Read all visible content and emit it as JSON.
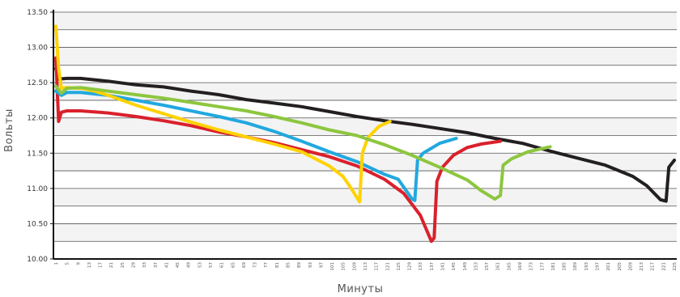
{
  "chart_data": {
    "type": "line",
    "title": "",
    "xlabel": "Минуты",
    "ylabel": "Вольты",
    "xlim": [
      1,
      225
    ],
    "ylim": [
      10.0,
      13.5
    ],
    "y_ticks": [
      "10.00",
      "10.50",
      "11.00",
      "11.50",
      "12.00",
      "12.50",
      "13.00",
      "13.50"
    ],
    "x_ticks": [
      "1",
      "5",
      "9",
      "13",
      "17",
      "21",
      "25",
      "29",
      "33",
      "37",
      "41",
      "45",
      "49",
      "53",
      "57",
      "61",
      "65",
      "69",
      "73",
      "77",
      "81",
      "85",
      "89",
      "93",
      "97",
      "101",
      "105",
      "109",
      "113",
      "117",
      "121",
      "125",
      "129",
      "133",
      "137",
      "141",
      "145",
      "149",
      "153",
      "157",
      "161",
      "165",
      "169",
      "173",
      "177",
      "181",
      "185",
      "189",
      "193",
      "197",
      "201",
      "205",
      "209",
      "213",
      "217",
      "221",
      "225"
    ],
    "grid": true,
    "legend": "none",
    "series": [
      {
        "color": "#231f20",
        "points": [
          [
            1,
            12.7
          ],
          [
            2,
            12.55
          ],
          [
            5,
            12.56
          ],
          [
            10,
            12.56
          ],
          [
            20,
            12.52
          ],
          [
            30,
            12.47
          ],
          [
            40,
            12.44
          ],
          [
            50,
            12.38
          ],
          [
            60,
            12.33
          ],
          [
            70,
            12.26
          ],
          [
            80,
            12.21
          ],
          [
            90,
            12.16
          ],
          [
            100,
            12.09
          ],
          [
            110,
            12.02
          ],
          [
            120,
            11.96
          ],
          [
            130,
            11.91
          ],
          [
            140,
            11.85
          ],
          [
            150,
            11.79
          ],
          [
            160,
            11.71
          ],
          [
            170,
            11.64
          ],
          [
            180,
            11.53
          ],
          [
            190,
            11.43
          ],
          [
            200,
            11.33
          ],
          [
            210,
            11.17
          ],
          [
            215,
            11.04
          ],
          [
            220,
            10.84
          ],
          [
            222,
            10.82
          ],
          [
            223,
            11.3
          ],
          [
            225,
            11.4
          ]
        ]
      },
      {
        "color": "#d9212c",
        "points": [
          [
            1,
            12.85
          ],
          [
            2,
            11.95
          ],
          [
            3,
            12.08
          ],
          [
            5,
            12.1
          ],
          [
            10,
            12.1
          ],
          [
            20,
            12.07
          ],
          [
            30,
            12.02
          ],
          [
            40,
            11.96
          ],
          [
            50,
            11.89
          ],
          [
            60,
            11.8
          ],
          [
            70,
            11.73
          ],
          [
            80,
            11.65
          ],
          [
            90,
            11.55
          ],
          [
            100,
            11.45
          ],
          [
            110,
            11.32
          ],
          [
            120,
            11.13
          ],
          [
            127,
            10.93
          ],
          [
            133,
            10.62
          ],
          [
            137,
            10.25
          ],
          [
            138,
            10.3
          ],
          [
            139,
            11.1
          ],
          [
            141,
            11.3
          ],
          [
            145,
            11.47
          ],
          [
            150,
            11.58
          ],
          [
            155,
            11.63
          ],
          [
            162,
            11.67
          ]
        ]
      },
      {
        "color": "#22a8df",
        "points": [
          [
            1,
            12.38
          ],
          [
            3,
            12.32
          ],
          [
            5,
            12.36
          ],
          [
            10,
            12.36
          ],
          [
            20,
            12.32
          ],
          [
            30,
            12.25
          ],
          [
            40,
            12.18
          ],
          [
            50,
            12.1
          ],
          [
            60,
            12.02
          ],
          [
            70,
            11.93
          ],
          [
            80,
            11.81
          ],
          [
            90,
            11.67
          ],
          [
            100,
            11.52
          ],
          [
            110,
            11.38
          ],
          [
            120,
            11.2
          ],
          [
            125,
            11.13
          ],
          [
            130,
            10.85
          ],
          [
            131,
            10.83
          ],
          [
            132,
            11.4
          ],
          [
            134,
            11.5
          ],
          [
            140,
            11.64
          ],
          [
            146,
            11.71
          ]
        ]
      },
      {
        "color": "#ffd200",
        "points": [
          [
            1,
            13.3
          ],
          [
            2,
            12.7
          ],
          [
            3,
            12.42
          ],
          [
            5,
            12.43
          ],
          [
            10,
            12.42
          ],
          [
            15,
            12.38
          ],
          [
            20,
            12.32
          ],
          [
            30,
            12.18
          ],
          [
            40,
            12.06
          ],
          [
            50,
            11.94
          ],
          [
            60,
            11.83
          ],
          [
            70,
            11.73
          ],
          [
            80,
            11.63
          ],
          [
            90,
            11.52
          ],
          [
            100,
            11.32
          ],
          [
            105,
            11.17
          ],
          [
            108,
            11.0
          ],
          [
            111,
            10.81
          ],
          [
            112,
            11.5
          ],
          [
            114,
            11.72
          ],
          [
            118,
            11.88
          ],
          [
            122,
            11.95
          ]
        ]
      },
      {
        "color": "#8dc63f",
        "points": [
          [
            1,
            12.45
          ],
          [
            3,
            12.35
          ],
          [
            5,
            12.42
          ],
          [
            10,
            12.43
          ],
          [
            20,
            12.38
          ],
          [
            30,
            12.33
          ],
          [
            40,
            12.28
          ],
          [
            50,
            12.22
          ],
          [
            60,
            12.16
          ],
          [
            70,
            12.1
          ],
          [
            80,
            12.02
          ],
          [
            90,
            11.93
          ],
          [
            100,
            11.83
          ],
          [
            110,
            11.75
          ],
          [
            120,
            11.62
          ],
          [
            130,
            11.47
          ],
          [
            140,
            11.3
          ],
          [
            150,
            11.12
          ],
          [
            155,
            10.97
          ],
          [
            160,
            10.85
          ],
          [
            162,
            10.9
          ],
          [
            163,
            11.33
          ],
          [
            166,
            11.42
          ],
          [
            172,
            11.52
          ],
          [
            180,
            11.59
          ]
        ]
      }
    ]
  }
}
